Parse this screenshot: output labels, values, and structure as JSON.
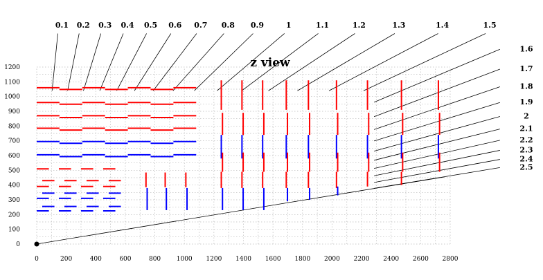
{
  "title": "z view",
  "chart_data": {
    "type": "diagram",
    "xlim": [
      0,
      2800
    ],
    "ylim": [
      0,
      1200
    ],
    "x_ticks": [
      0,
      200,
      400,
      600,
      800,
      1000,
      1200,
      1400,
      1600,
      1800,
      2000,
      2200,
      2400,
      2600,
      2800
    ],
    "y_ticks": [
      0,
      100,
      200,
      300,
      400,
      500,
      600,
      700,
      800,
      900,
      1000,
      1100,
      1200
    ],
    "x_tick_labels": [
      "0",
      "200",
      "400",
      "600",
      "800",
      "1000",
      "1200",
      "1400",
      "1600",
      "1800",
      "2000",
      "2200",
      "2400",
      "2600",
      "2800"
    ],
    "y_tick_labels": [
      "0",
      "100",
      "200",
      "300",
      "400",
      "500",
      "600",
      "700",
      "800",
      "900",
      "1000",
      "1100",
      "1200"
    ],
    "eta_values": [
      "0.1",
      "0.2",
      "0.3",
      "0.4",
      "0.5",
      "0.6",
      "0.7",
      "0.8",
      "0.9",
      "1",
      "1.1",
      "1.2",
      "1.3",
      "1.4",
      "1.5",
      "1.6",
      "1.7",
      "1.8",
      "1.9",
      "2",
      "2.1",
      "2.2",
      "2.3",
      "2.4",
      "2.5"
    ],
    "eta_line_extent": [
      0.67,
      0.92
    ],
    "origin_point": [
      0,
      0
    ],
    "track_line": {
      "from": [
        0,
        0
      ],
      "to": [
        2760,
        455
      ]
    },
    "colors": {
      "red": "#ff0000",
      "blue": "#0000ff",
      "line": "#000000",
      "grid": "#b8b8b8"
    },
    "barrel_layers": [
      {
        "r": 1060,
        "z_min": 0,
        "z_max": 1080,
        "color": "red"
      },
      {
        "r": 960,
        "z_min": 0,
        "z_max": 1080,
        "color": "red"
      },
      {
        "r": 870,
        "z_min": 0,
        "z_max": 1080,
        "color": "red"
      },
      {
        "r": 785,
        "z_min": 0,
        "z_max": 1080,
        "color": "red"
      },
      {
        "r": 695,
        "z_min": 0,
        "z_max": 1080,
        "color": "blue"
      },
      {
        "r": 605,
        "z_min": 0,
        "z_max": 1080,
        "color": "blue"
      }
    ],
    "short_barrel_layers": [
      {
        "r": 510,
        "z_min": 0,
        "z_max": 600,
        "color": "red"
      },
      {
        "r": 430,
        "z_min": 0,
        "z_max": 600,
        "color": "red"
      },
      {
        "r": 390,
        "z_min": 0,
        "z_max": 600,
        "color": "red"
      },
      {
        "r": 345,
        "z_min": 0,
        "z_max": 600,
        "color": "blue"
      },
      {
        "r": 310,
        "z_min": 0,
        "z_max": 600,
        "color": "blue"
      },
      {
        "r": 255,
        "z_min": 0,
        "z_max": 600,
        "color": "blue"
      },
      {
        "r": 225,
        "z_min": 0,
        "z_max": 600,
        "color": "blue"
      }
    ],
    "inner_disks": [
      {
        "z": 740,
        "segments": [
          {
            "r_min": 385,
            "r_max": 485,
            "color": "red"
          },
          {
            "r_min": 230,
            "r_max": 380,
            "color": "blue"
          }
        ]
      },
      {
        "z": 870,
        "segments": [
          {
            "r_min": 385,
            "r_max": 485,
            "color": "red"
          },
          {
            "r_min": 230,
            "r_max": 380,
            "color": "blue"
          }
        ]
      },
      {
        "z": 1010,
        "segments": [
          {
            "r_min": 385,
            "r_max": 485,
            "color": "red"
          },
          {
            "r_min": 230,
            "r_max": 380,
            "color": "blue"
          }
        ]
      }
    ],
    "endcap_disks": [
      {
        "z": 1250,
        "segments": [
          {
            "r_min": 910,
            "r_max": 1110,
            "color": "red"
          },
          {
            "r_min": 740,
            "r_max": 890,
            "color": "red"
          },
          {
            "r_min": 580,
            "r_max": 740,
            "color": "blue"
          },
          {
            "r_min": 490,
            "r_max": 620,
            "color": "red"
          },
          {
            "r_min": 380,
            "r_max": 490,
            "color": "red"
          },
          {
            "r_min": 230,
            "r_max": 380,
            "color": "blue"
          }
        ]
      },
      {
        "z": 1390,
        "segments": [
          {
            "r_min": 910,
            "r_max": 1110,
            "color": "red"
          },
          {
            "r_min": 740,
            "r_max": 890,
            "color": "red"
          },
          {
            "r_min": 580,
            "r_max": 740,
            "color": "blue"
          },
          {
            "r_min": 490,
            "r_max": 620,
            "color": "red"
          },
          {
            "r_min": 380,
            "r_max": 490,
            "color": "red"
          },
          {
            "r_min": 230,
            "r_max": 380,
            "color": "blue"
          }
        ]
      },
      {
        "z": 1530,
        "segments": [
          {
            "r_min": 910,
            "r_max": 1110,
            "color": "red"
          },
          {
            "r_min": 740,
            "r_max": 890,
            "color": "red"
          },
          {
            "r_min": 580,
            "r_max": 740,
            "color": "blue"
          },
          {
            "r_min": 490,
            "r_max": 620,
            "color": "red"
          },
          {
            "r_min": 380,
            "r_max": 490,
            "color": "red"
          },
          {
            "r_min": 230,
            "r_max": 380,
            "color": "blue"
          }
        ]
      },
      {
        "z": 1690,
        "segments": [
          {
            "r_min": 910,
            "r_max": 1110,
            "color": "red"
          },
          {
            "r_min": 740,
            "r_max": 890,
            "color": "red"
          },
          {
            "r_min": 580,
            "r_max": 740,
            "color": "blue"
          },
          {
            "r_min": 490,
            "r_max": 620,
            "color": "red"
          },
          {
            "r_min": 380,
            "r_max": 490,
            "color": "red"
          },
          {
            "r_min": 290,
            "r_max": 380,
            "color": "blue"
          }
        ]
      },
      {
        "z": 1840,
        "segments": [
          {
            "r_min": 910,
            "r_max": 1110,
            "color": "red"
          },
          {
            "r_min": 740,
            "r_max": 890,
            "color": "red"
          },
          {
            "r_min": 580,
            "r_max": 740,
            "color": "blue"
          },
          {
            "r_min": 490,
            "r_max": 620,
            "color": "red"
          },
          {
            "r_min": 380,
            "r_max": 490,
            "color": "red"
          },
          {
            "r_min": 300,
            "r_max": 380,
            "color": "blue"
          }
        ]
      },
      {
        "z": 2030,
        "segments": [
          {
            "r_min": 910,
            "r_max": 1110,
            "color": "red"
          },
          {
            "r_min": 740,
            "r_max": 890,
            "color": "red"
          },
          {
            "r_min": 580,
            "r_max": 740,
            "color": "blue"
          },
          {
            "r_min": 490,
            "r_max": 620,
            "color": "red"
          },
          {
            "r_min": 380,
            "r_max": 490,
            "color": "red"
          },
          {
            "r_min": 330,
            "r_max": 390,
            "color": "blue"
          }
        ]
      },
      {
        "z": 2240,
        "segments": [
          {
            "r_min": 910,
            "r_max": 1110,
            "color": "red"
          },
          {
            "r_min": 740,
            "r_max": 890,
            "color": "red"
          },
          {
            "r_min": 580,
            "r_max": 740,
            "color": "blue"
          },
          {
            "r_min": 490,
            "r_max": 620,
            "color": "red"
          },
          {
            "r_min": 390,
            "r_max": 490,
            "color": "red"
          }
        ]
      },
      {
        "z": 2470,
        "segments": [
          {
            "r_min": 910,
            "r_max": 1110,
            "color": "red"
          },
          {
            "r_min": 740,
            "r_max": 890,
            "color": "red"
          },
          {
            "r_min": 580,
            "r_max": 740,
            "color": "blue"
          },
          {
            "r_min": 490,
            "r_max": 620,
            "color": "red"
          },
          {
            "r_min": 400,
            "r_max": 490,
            "color": "red"
          }
        ]
      },
      {
        "z": 2720,
        "segments": [
          {
            "r_min": 910,
            "r_max": 1110,
            "color": "red"
          },
          {
            "r_min": 740,
            "r_max": 890,
            "color": "red"
          },
          {
            "r_min": 580,
            "r_max": 740,
            "color": "blue"
          },
          {
            "r_min": 490,
            "r_max": 620,
            "color": "red"
          }
        ]
      }
    ]
  }
}
